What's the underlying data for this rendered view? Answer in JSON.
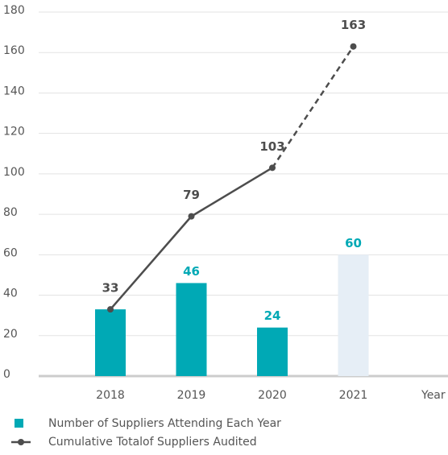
{
  "chart_data": {
    "type": "bar_line",
    "categories": [
      "2018",
      "2019",
      "2020",
      "2021"
    ],
    "x_label": "Year",
    "series": [
      {
        "name": "Number of Suppliers Attending Each Year",
        "type": "bar",
        "color": "#00a9b5",
        "colors": [
          "#00a9b5",
          "#00a9b5",
          "#00a9b5",
          "#e6eef6"
        ],
        "values": [
          33,
          46,
          24,
          60
        ],
        "value_labels": [
          null,
          "46",
          "24",
          "60"
        ]
      },
      {
        "name": "Cumulative Totalof Suppliers Audited",
        "type": "line",
        "color": "#4d4d4d",
        "values": [
          33,
          79,
          103,
          163
        ],
        "segment_styles": [
          "solid",
          "solid",
          "dashed"
        ]
      }
    ],
    "ylim": [
      0,
      180
    ],
    "yticks": [
      0,
      20,
      40,
      60,
      80,
      100,
      120,
      140,
      160,
      180
    ],
    "grid": true
  }
}
